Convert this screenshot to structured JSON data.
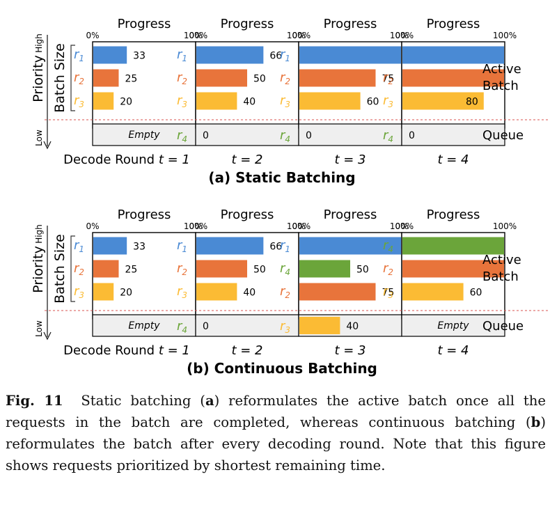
{
  "labels": {
    "progress": "Progress",
    "pct_min": "0%",
    "pct_max": "100%",
    "high": "High",
    "low": "Low",
    "priority": "Priority",
    "batch_size": "Batch Size",
    "active": "Active",
    "batch": "Batch",
    "queue": "Queue",
    "empty": "Empty",
    "decode_round": "Decode Round "
  },
  "colors": {
    "r1": "#4a8ad4",
    "r2": "#e8743b",
    "r3": "#fbbb34",
    "r4": "#6ba53a"
  },
  "sections": [
    {
      "title": "(a) Static Batching",
      "rounds": [
        {
          "t": "t = 1",
          "rows": [
            {
              "req": "1",
              "color": "r1",
              "pct": 33,
              "label": "33"
            },
            {
              "req": "2",
              "color": "r2",
              "pct": 25,
              "label": "25"
            },
            {
              "req": "3",
              "color": "r3",
              "pct": 20,
              "label": "20"
            }
          ],
          "queue": {
            "req": "",
            "color": "",
            "pct": 0,
            "label": "Empty",
            "empty": true
          }
        },
        {
          "t": "t = 2",
          "rows": [
            {
              "req": "1",
              "color": "r1",
              "pct": 66,
              "label": "66"
            },
            {
              "req": "2",
              "color": "r2",
              "pct": 50,
              "label": "50"
            },
            {
              "req": "3",
              "color": "r3",
              "pct": 40,
              "label": "40"
            }
          ],
          "queue": {
            "req": "4",
            "color": "r4",
            "pct": 0,
            "label": "0",
            "empty": false
          }
        },
        {
          "t": "t = 3",
          "rows": [
            {
              "req": "1",
              "color": "r1",
              "pct": 100,
              "label": ""
            },
            {
              "req": "2",
              "color": "r2",
              "pct": 75,
              "label": "75"
            },
            {
              "req": "3",
              "color": "r3",
              "pct": 60,
              "label": "60"
            }
          ],
          "queue": {
            "req": "4",
            "color": "r4",
            "pct": 0,
            "label": "0",
            "empty": false
          }
        },
        {
          "t": "t = 4",
          "rows": [
            {
              "req": "1",
              "color": "r1",
              "pct": 100,
              "label": ""
            },
            {
              "req": "2",
              "color": "r2",
              "pct": 100,
              "label": ""
            },
            {
              "req": "3",
              "color": "r3",
              "pct": 80,
              "label": "80",
              "inside": true
            }
          ],
          "queue": {
            "req": "4",
            "color": "r4",
            "pct": 0,
            "label": "0",
            "empty": false
          }
        }
      ]
    },
    {
      "title": "(b) Continuous Batching",
      "rounds": [
        {
          "t": "t = 1",
          "rows": [
            {
              "req": "1",
              "color": "r1",
              "pct": 33,
              "label": "33"
            },
            {
              "req": "2",
              "color": "r2",
              "pct": 25,
              "label": "25"
            },
            {
              "req": "3",
              "color": "r3",
              "pct": 20,
              "label": "20"
            }
          ],
          "queue": {
            "req": "",
            "color": "",
            "pct": 0,
            "label": "Empty",
            "empty": true
          }
        },
        {
          "t": "t = 2",
          "rows": [
            {
              "req": "1",
              "color": "r1",
              "pct": 66,
              "label": "66"
            },
            {
              "req": "2",
              "color": "r2",
              "pct": 50,
              "label": "50"
            },
            {
              "req": "3",
              "color": "r3",
              "pct": 40,
              "label": "40"
            }
          ],
          "queue": {
            "req": "4",
            "color": "r4",
            "pct": 0,
            "label": "0",
            "empty": false
          }
        },
        {
          "t": "t = 3",
          "rows": [
            {
              "req": "1",
              "color": "r1",
              "pct": 100,
              "label": ""
            },
            {
              "req": "4",
              "color": "r4",
              "pct": 50,
              "label": "50"
            },
            {
              "req": "2",
              "color": "r2",
              "pct": 75,
              "label": "75"
            }
          ],
          "queue": {
            "req": "3",
            "color": "r3",
            "pct": 40,
            "label": "40",
            "empty": false
          }
        },
        {
          "t": "t = 4",
          "rows": [
            {
              "req": "4",
              "color": "r4",
              "pct": 100,
              "label": ""
            },
            {
              "req": "2",
              "color": "r2",
              "pct": 100,
              "label": ""
            },
            {
              "req": "3",
              "color": "r3",
              "pct": 60,
              "label": "60"
            }
          ],
          "queue": {
            "req": "",
            "color": "",
            "pct": 0,
            "label": "Empty",
            "empty": true
          }
        }
      ]
    }
  ],
  "caption": {
    "fig": "Fig. 11",
    "p1": "Static batching (",
    "a": "a",
    "p2": ") reformulates the active batch once all the requests in the batch are completed, whereas continuous batching (",
    "b": "b",
    "p3": ") reformulates the batch after every decoding round. Note that this figure shows requests prioritized by shortest remaining time."
  }
}
